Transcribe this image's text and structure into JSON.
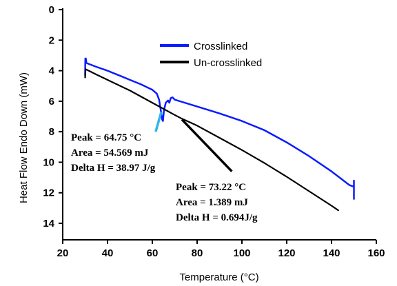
{
  "chart_data": {
    "type": "line",
    "xlabel": "Temperature (°C)",
    "ylabel": "Heat Flow Endo Down (mW)",
    "xlim": [
      20,
      160
    ],
    "ylim": [
      0,
      15
    ],
    "y_inverted": true,
    "x_ticks": [
      20,
      40,
      60,
      80,
      100,
      120,
      140,
      160
    ],
    "y_ticks": [
      0,
      2,
      4,
      6,
      8,
      10,
      12,
      14
    ],
    "legend_position": "top-center",
    "series": [
      {
        "name": "Crosslinked",
        "color": "#0a1bff",
        "points": [
          [
            30.0,
            4.3
          ],
          [
            30.1,
            3.2
          ],
          [
            30.3,
            3.2
          ],
          [
            30.6,
            3.5
          ],
          [
            35,
            3.75
          ],
          [
            40,
            4.0
          ],
          [
            45,
            4.3
          ],
          [
            50,
            4.6
          ],
          [
            55,
            4.9
          ],
          [
            60,
            5.25
          ],
          [
            62,
            5.5
          ],
          [
            63,
            5.9
          ],
          [
            63.8,
            6.6
          ],
          [
            64.4,
            7.2
          ],
          [
            64.75,
            7.3
          ],
          [
            65.2,
            6.6
          ],
          [
            66,
            6.1
          ],
          [
            67,
            5.95
          ],
          [
            67.6,
            6.1
          ],
          [
            68.2,
            5.8
          ],
          [
            69,
            5.75
          ],
          [
            70,
            5.9
          ],
          [
            80,
            6.35
          ],
          [
            90,
            6.8
          ],
          [
            100,
            7.3
          ],
          [
            110,
            7.9
          ],
          [
            120,
            8.7
          ],
          [
            130,
            9.6
          ],
          [
            140,
            10.6
          ],
          [
            148,
            11.5
          ],
          [
            150,
            11.6
          ],
          [
            150,
            11.2
          ],
          [
            150,
            12.4
          ]
        ]
      },
      {
        "name": "Un-crosslinked",
        "color": "#000000",
        "points": [
          [
            30.0,
            4.45
          ],
          [
            30.2,
            3.9
          ],
          [
            35,
            4.25
          ],
          [
            40,
            4.6
          ],
          [
            50,
            5.3
          ],
          [
            60,
            6.1
          ],
          [
            70,
            6.9
          ],
          [
            73.22,
            7.15
          ],
          [
            80,
            7.6
          ],
          [
            90,
            8.4
          ],
          [
            100,
            9.2
          ],
          [
            110,
            10.05
          ],
          [
            120,
            10.95
          ],
          [
            130,
            11.9
          ],
          [
            140,
            12.85
          ],
          [
            143,
            13.15
          ]
        ]
      }
    ],
    "annotations": [
      {
        "lines": [
          "Peak = 64.75 °C",
          "Area = 54.569 mJ",
          "Delta H = 38.97 J/g"
        ],
        "arrow_color": "#33b5e5",
        "points_to": [
          64.0,
          6.7
        ],
        "arrow_tail": [
          61.5,
          8.0
        ]
      },
      {
        "lines": [
          "Peak = 73.22 °C",
          "Area = 1.389 mJ",
          "Delta H = 0.694J/g"
        ],
        "arrow_color": "#000000",
        "points_to": [
          73.22,
          7.2
        ],
        "arrow_tail": [
          95.5,
          10.6
        ]
      }
    ]
  }
}
